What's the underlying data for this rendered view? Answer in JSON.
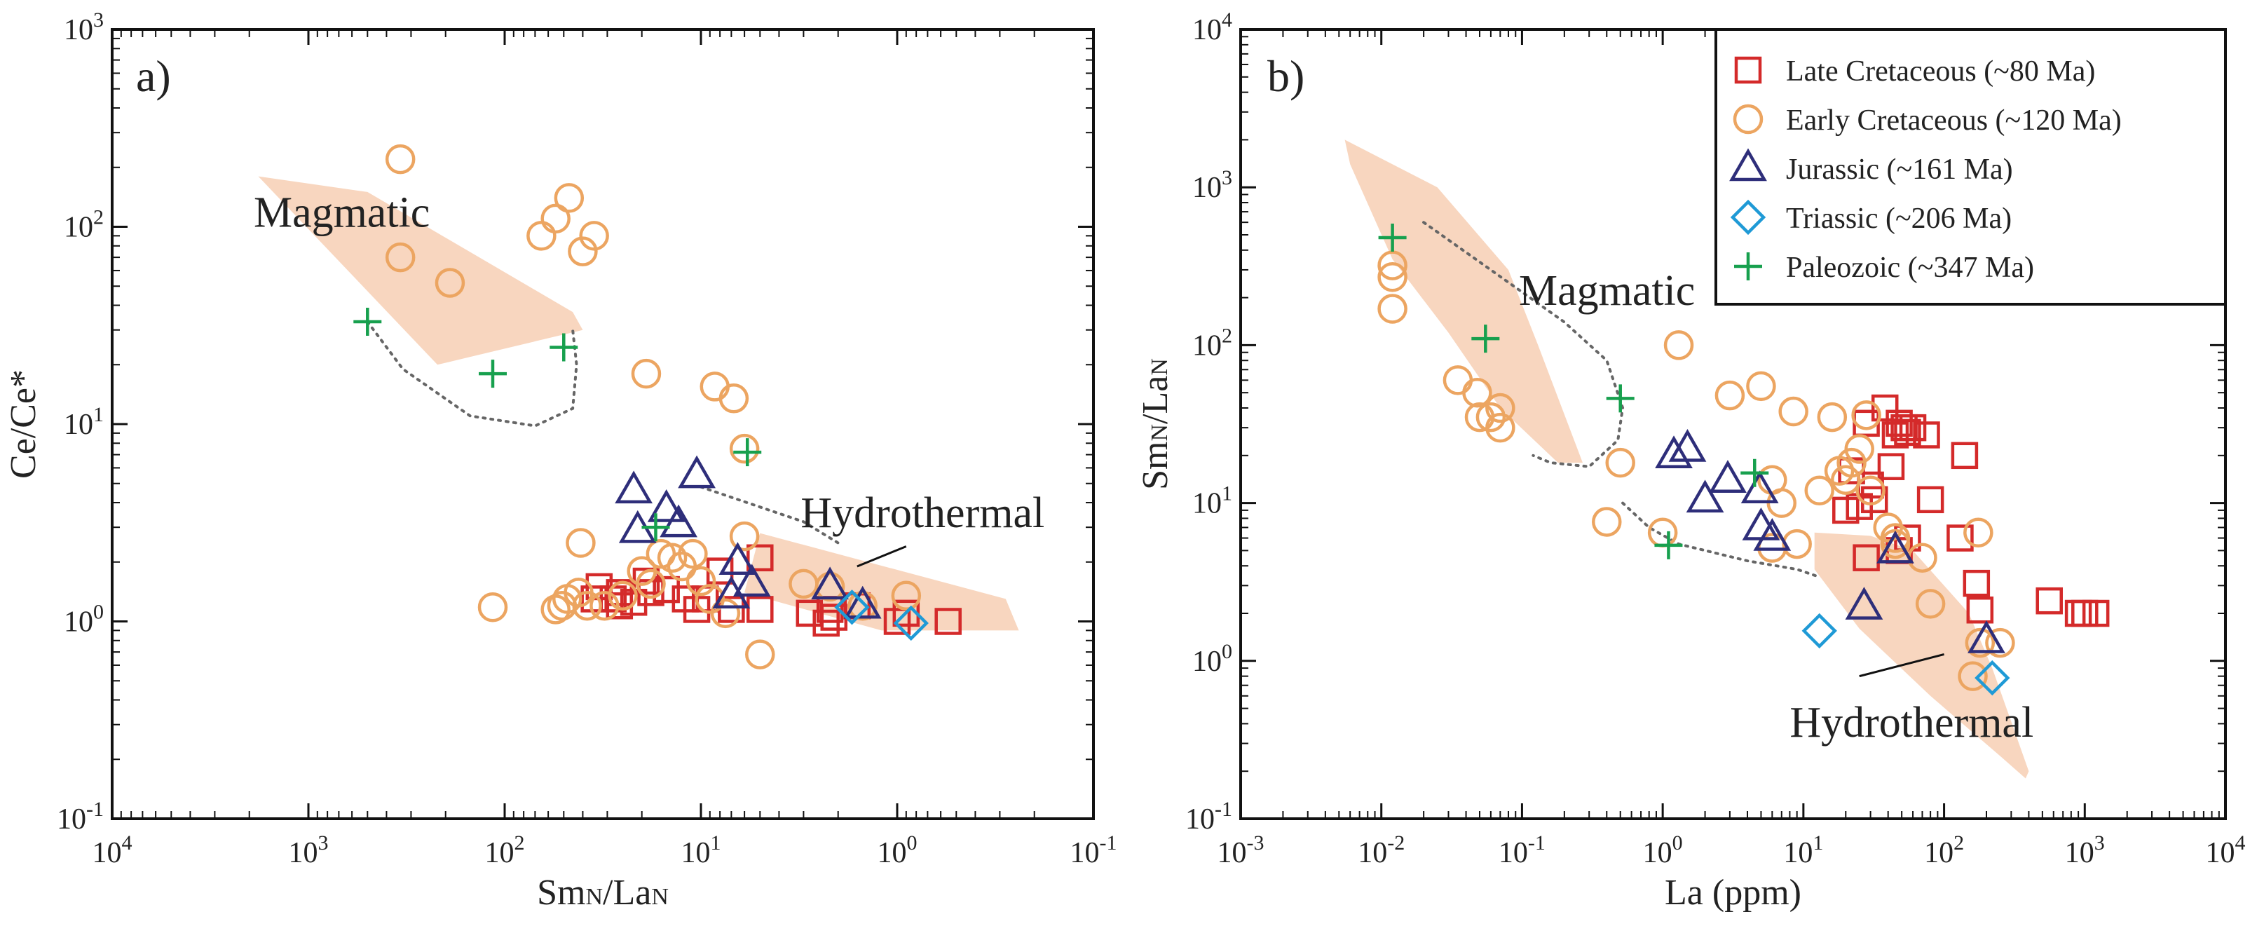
{
  "chart_data": [
    {
      "type": "scatter",
      "panel_label": "a)",
      "xlabel": "SmN/LaN",
      "ylabel": "Ce/Ce*",
      "xscale": "log",
      "yscale": "log",
      "xlim": [
        10000,
        0.1
      ],
      "ylim": [
        0.1,
        1000
      ],
      "x_axis_reversed": true,
      "x_tick_labels": [
        "10^4",
        "10^3",
        "10^2",
        "10^1",
        "10^0",
        "10^-1"
      ],
      "y_tick_labels": [
        "10^-1",
        "10^0",
        "10^1",
        "10^2",
        "10^3"
      ],
      "fields": [
        {
          "name": "Magmatic",
          "label": "Magmatic",
          "polygon": [
            [
              1800,
              180
            ],
            [
              500,
              150
            ],
            [
              45,
              37
            ],
            [
              40,
              30
            ],
            [
              220,
              20
            ],
            [
              1800,
              180
            ]
          ]
        },
        {
          "name": "Hydrothermal",
          "label": "Hydrothermal",
          "polygon": [
            [
              5,
              2.8
            ],
            [
              0.28,
              1.3
            ],
            [
              0.24,
              0.9
            ],
            [
              1.2,
              0.9
            ],
            [
              6,
              1.4
            ],
            [
              5,
              2.8
            ]
          ]
        }
      ],
      "dotted_outlines": [
        {
          "name": "magmatic-extension",
          "points": [
            [
              500,
              33
            ],
            [
              330,
              19
            ],
            [
              150,
              11
            ],
            [
              70,
              9.8
            ],
            [
              45,
              12
            ],
            [
              43,
              20
            ],
            [
              45,
              30
            ]
          ]
        },
        {
          "name": "hydrothermal-extension",
          "points": [
            [
              10,
              4.8
            ],
            [
              5,
              3.8
            ],
            [
              3,
              3.2
            ],
            [
              2,
              2.5
            ]
          ]
        }
      ],
      "series": [
        {
          "name": "Late Cretaceous (~80 Ma)",
          "marker": "square",
          "color": "#d42a2a",
          "points": [
            [
              33,
              1.5
            ],
            [
              26,
              1.4
            ],
            [
              35,
              1.3
            ],
            [
              28,
              1.3
            ],
            [
              22,
              1.25
            ],
            [
              26,
              1.2
            ],
            [
              18,
              1.4
            ],
            [
              19,
              1.6
            ],
            [
              15,
              1.45
            ],
            [
              12,
              1.3
            ],
            [
              9.5,
              1.3
            ],
            [
              10.5,
              1.15
            ],
            [
              5,
              2.1
            ],
            [
              8,
              1.8
            ],
            [
              5,
              1.15
            ],
            [
              2.8,
              1.1
            ],
            [
              2.2,
              1.15
            ],
            [
              2.3,
              0.98
            ],
            [
              2.1,
              1.05
            ],
            [
              1.6,
              1.2
            ],
            [
              0.9,
              1.1
            ],
            [
              0.55,
              1.0
            ],
            [
              1.0,
              1.0
            ],
            [
              7,
              1.15
            ]
          ]
        },
        {
          "name": "Early Cretaceous (~120 Ma)",
          "marker": "circle",
          "color": "#eca561",
          "points": [
            [
              340,
              220
            ],
            [
              340,
              70
            ],
            [
              190,
              52
            ],
            [
              65,
              90
            ],
            [
              55,
              110
            ],
            [
              47,
              140
            ],
            [
              40,
              75
            ],
            [
              35,
              90
            ],
            [
              19,
              18
            ],
            [
              8.5,
              15.5
            ],
            [
              6.8,
              13.5
            ],
            [
              6,
              7.5
            ],
            [
              41,
              2.5
            ],
            [
              6,
              2.7
            ],
            [
              115,
              1.18
            ],
            [
              55,
              1.15
            ],
            [
              51,
              1.2
            ],
            [
              48,
              1.3
            ],
            [
              42,
              1.4
            ],
            [
              38,
              1.2
            ],
            [
              31,
              1.2
            ],
            [
              25,
              1.35
            ],
            [
              20,
              1.8
            ],
            [
              18,
              1.55
            ],
            [
              16,
              2.2
            ],
            [
              14,
              2.1
            ],
            [
              12.5,
              1.9
            ],
            [
              11,
              2.2
            ],
            [
              10,
              1.6
            ],
            [
              7.5,
              1.1
            ],
            [
              5,
              0.68
            ],
            [
              3,
              1.55
            ],
            [
              2.2,
              1.5
            ],
            [
              1.5,
              1.2
            ],
            [
              0.9,
              1.35
            ],
            [
              9,
              1.3
            ]
          ]
        },
        {
          "name": "Jurassic (~161 Ma)",
          "marker": "triangle",
          "color": "#2e2e7a",
          "points": [
            [
              22,
              4.6
            ],
            [
              21,
              2.9
            ],
            [
              15,
              3.7
            ],
            [
              13,
              3.1
            ],
            [
              10.5,
              5.5
            ],
            [
              7,
              1.35
            ],
            [
              6.5,
              2.0
            ],
            [
              5.5,
              1.55
            ],
            [
              2.2,
              1.5
            ],
            [
              1.5,
              1.2
            ]
          ]
        },
        {
          "name": "Triassic (~206 Ma)",
          "marker": "diamond",
          "color": "#1f9ad6",
          "points": [
            [
              1.7,
              1.18
            ],
            [
              0.85,
              0.98
            ]
          ]
        },
        {
          "name": "Paleozoic (~347 Ma)",
          "marker": "plus",
          "color": "#17a04e",
          "points": [
            [
              500,
              33
            ],
            [
              115,
              18
            ],
            [
              50,
              24.5
            ],
            [
              17,
              3.0
            ],
            [
              5.8,
              7.2
            ]
          ]
        }
      ]
    },
    {
      "type": "scatter",
      "panel_label": "b)",
      "xlabel": "La (ppm)",
      "ylabel": "SmN/LaN",
      "xscale": "log",
      "yscale": "log",
      "xlim": [
        0.001,
        10000
      ],
      "ylim": [
        0.1,
        10000
      ],
      "x_tick_labels": [
        "10^-3",
        "10^-2",
        "10^-1",
        "10^0",
        "10^1",
        "10^2",
        "10^3",
        "10^4"
      ],
      "y_tick_labels": [
        "10^-1",
        "10^0",
        "10^1",
        "10^2",
        "10^3",
        "10^4"
      ],
      "legend_position": "top-right",
      "fields": [
        {
          "name": "Magmatic",
          "label": "Magmatic",
          "polygon": [
            [
              0.0055,
              2000
            ],
            [
              0.025,
              1000
            ],
            [
              0.08,
              300
            ],
            [
              0.13,
              100
            ],
            [
              0.27,
              18
            ],
            [
              0.18,
              18
            ],
            [
              0.07,
              40
            ],
            [
              0.03,
              120
            ],
            [
              0.012,
              350
            ],
            [
              0.006,
              1400
            ],
            [
              0.0055,
              2000
            ]
          ]
        },
        {
          "name": "Hydrothermal",
          "label": "Hydrothermal",
          "polygon": [
            [
              12,
              6.5
            ],
            [
              30,
              6.2
            ],
            [
              60,
              5.0
            ],
            [
              150,
              2.0
            ],
            [
              220,
              0.9
            ],
            [
              400,
              0.2
            ],
            [
              380,
              0.18
            ],
            [
              250,
              0.25
            ],
            [
              80,
              0.6
            ],
            [
              25,
              1.6
            ],
            [
              12,
              3.8
            ],
            [
              12,
              6.5
            ]
          ]
        }
      ],
      "dotted_outlines": [
        {
          "name": "magmatic-extension",
          "points": [
            [
              0.02,
              600
            ],
            [
              0.08,
              250
            ],
            [
              0.2,
              140
            ],
            [
              0.4,
              80
            ],
            [
              0.52,
              40
            ],
            [
              0.48,
              25
            ],
            [
              0.3,
              17
            ],
            [
              0.16,
              18
            ],
            [
              0.12,
              20
            ]
          ]
        },
        {
          "name": "hydrothermal-extension",
          "points": [
            [
              0.52,
              10
            ],
            [
              0.8,
              7
            ],
            [
              1.3,
              5.5
            ],
            [
              4,
              4.3
            ],
            [
              9,
              3.8
            ],
            [
              13,
              3.4
            ]
          ]
        }
      ],
      "legend": [
        {
          "label": "Late Cretaceous (~80 Ma)",
          "marker": "square",
          "color": "#d42a2a"
        },
        {
          "label": "Early Cretaceous  (~120 Ma)",
          "marker": "circle",
          "color": "#eca561"
        },
        {
          "label": "Jurassic (~161 Ma)",
          "marker": "triangle",
          "color": "#2e2e7a"
        },
        {
          "label": "Triassic (~206  Ma)",
          "marker": "diamond",
          "color": "#1f9ad6"
        },
        {
          "label": "Paleozoic (~347 Ma)",
          "marker": "plus",
          "color": "#17a04e"
        }
      ],
      "series": [
        {
          "name": "Late Cretaceous (~80 Ma)",
          "marker": "square",
          "color": "#d42a2a",
          "points": [
            [
              28,
              32
            ],
            [
              38,
              40
            ],
            [
              48,
              32
            ],
            [
              52,
              30
            ],
            [
              55,
              28
            ],
            [
              45,
              27
            ],
            [
              75,
              27
            ],
            [
              60,
              30
            ],
            [
              42,
              17
            ],
            [
              30,
              13
            ],
            [
              22,
              16
            ],
            [
              25,
              9.5
            ],
            [
              20,
              9
            ],
            [
              32,
              10.5
            ],
            [
              55,
              6
            ],
            [
              48,
              5
            ],
            [
              28,
              4.5
            ],
            [
              80,
              10.5
            ],
            [
              140,
              20
            ],
            [
              130,
              6
            ],
            [
              170,
              3.1
            ],
            [
              180,
              2.1
            ],
            [
              560,
              2.4
            ],
            [
              900,
              2.0
            ],
            [
              1000,
              2.0
            ],
            [
              1200,
              2.0
            ]
          ]
        },
        {
          "name": "Early Cretaceous (~120 Ma)",
          "marker": "circle",
          "color": "#eca561",
          "points": [
            [
              0.012,
              320
            ],
            [
              0.012,
              270
            ],
            [
              0.012,
              170
            ],
            [
              0.035,
              60
            ],
            [
              0.048,
              50
            ],
            [
              0.05,
              35
            ],
            [
              0.06,
              35
            ],
            [
              0.07,
              40
            ],
            [
              0.07,
              30
            ],
            [
              0.5,
              18
            ],
            [
              0.4,
              7.6
            ],
            [
              1.0,
              6.5
            ],
            [
              1.3,
              100
            ],
            [
              3,
              48
            ],
            [
              5,
              55
            ],
            [
              8.5,
              38
            ],
            [
              16,
              35
            ],
            [
              28,
              36
            ],
            [
              25,
              22
            ],
            [
              20,
              14
            ],
            [
              6,
              14
            ],
            [
              7,
              10
            ],
            [
              9,
              5.5
            ],
            [
              13,
              12
            ],
            [
              18,
              16
            ],
            [
              22,
              18
            ],
            [
              30,
              12
            ],
            [
              40,
              7
            ],
            [
              45,
              6
            ],
            [
              45,
              5.5
            ],
            [
              70,
              4.5
            ],
            [
              80,
              2.3
            ],
            [
              175,
              6.5
            ],
            [
              180,
              1.3
            ],
            [
              160,
              0.8
            ],
            [
              250,
              1.3
            ],
            [
              6,
              5.2
            ]
          ]
        },
        {
          "name": "Jurassic (~161 Ma)",
          "marker": "triangle",
          "color": "#2e2e7a",
          "points": [
            [
              1.2,
              20
            ],
            [
              1.5,
              22
            ],
            [
              2,
              10.5
            ],
            [
              2.9,
              14
            ],
            [
              4.9,
              12
            ],
            [
              5,
              7
            ],
            [
              6,
              6
            ],
            [
              45,
              5
            ],
            [
              27,
              2.2
            ],
            [
              200,
              1.35
            ]
          ]
        },
        {
          "name": "Triassic (~206 Ma)",
          "marker": "diamond",
          "color": "#1f9ad6",
          "points": [
            [
              13,
              1.55
            ],
            [
              220,
              0.78
            ]
          ]
        },
        {
          "name": "Paleozoic (~347 Ma)",
          "marker": "plus",
          "color": "#17a04e",
          "points": [
            [
              0.012,
              480
            ],
            [
              0.055,
              110
            ],
            [
              0.5,
              46
            ],
            [
              1.1,
              5.4
            ],
            [
              4.5,
              15.5
            ]
          ]
        }
      ]
    }
  ]
}
